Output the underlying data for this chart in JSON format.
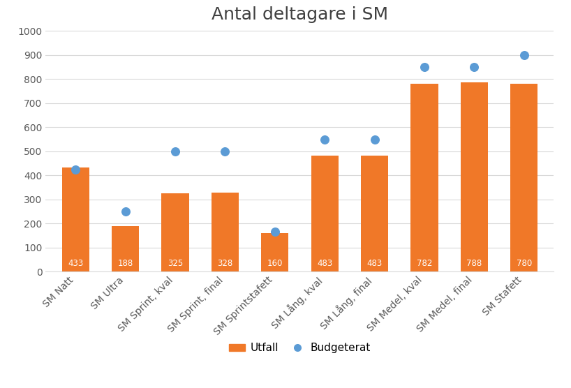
{
  "title": "Antal deltagare i SM",
  "categories": [
    "SM Natt",
    "SM Ultra",
    "SM Sprint, kval",
    "SM Sprint, final",
    "SM Sprintstafett",
    "SM Lång, kval",
    "SM Lång, final",
    "SM Medel, kval",
    "SM Medel, final",
    "SM Stafett"
  ],
  "utfall": [
    433,
    188,
    325,
    328,
    160,
    483,
    483,
    782,
    788,
    780
  ],
  "budgeterat": [
    425,
    250,
    500,
    500,
    165,
    550,
    550,
    850,
    850,
    900
  ],
  "bar_color": "#F07828",
  "dot_color": "#5B9BD5",
  "bar_label_color": "#FFFFFF",
  "background_color": "#FFFFFF",
  "ylim": [
    0,
    1000
  ],
  "yticks": [
    0,
    100,
    200,
    300,
    400,
    500,
    600,
    700,
    800,
    900,
    1000
  ],
  "legend_utfall": "Utfall",
  "legend_budgeterat": "Budgeterat",
  "title_fontsize": 18,
  "label_fontsize": 8.5,
  "tick_fontsize": 10,
  "axis_label_color": "#595959",
  "grid_color": "#D9D9D9"
}
